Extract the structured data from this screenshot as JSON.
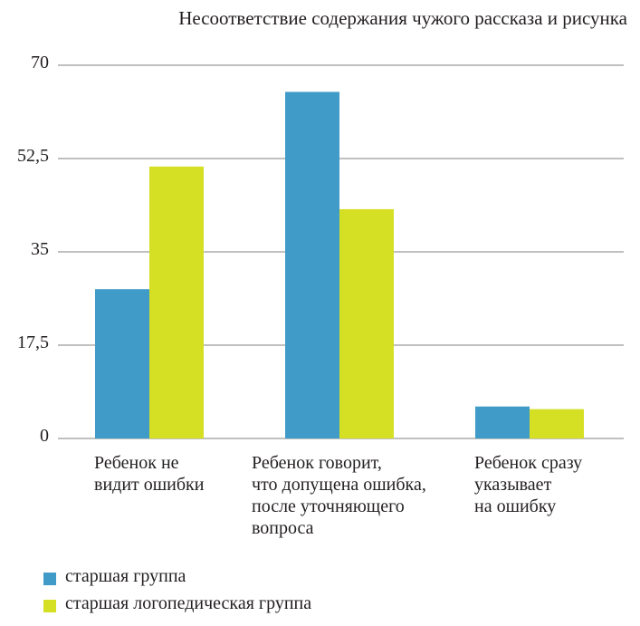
{
  "chart_data": {
    "type": "bar",
    "title": "Несоответствие содержания чужого рассказа и рисунка",
    "categories": [
      "Ребенок не\nвидит ошибки",
      "Ребенок говорит,\nчто допущена ошибка,\nпосле уточняющего\nвопроса",
      "Ребенок сразу\nуказывает\nна ошибку"
    ],
    "series": [
      {
        "name": "старшая группа",
        "color": "#419bc8",
        "values": [
          28,
          65,
          6
        ]
      },
      {
        "name": "старшая логопедическая группа",
        "color": "#d5df24",
        "values": [
          51,
          43,
          5.5
        ]
      }
    ],
    "y_ticks": [
      "0",
      "17,5",
      "35",
      "52,5",
      "70"
    ],
    "ylim": [
      0,
      70
    ],
    "grid": true,
    "legend_position": "bottom-left"
  }
}
